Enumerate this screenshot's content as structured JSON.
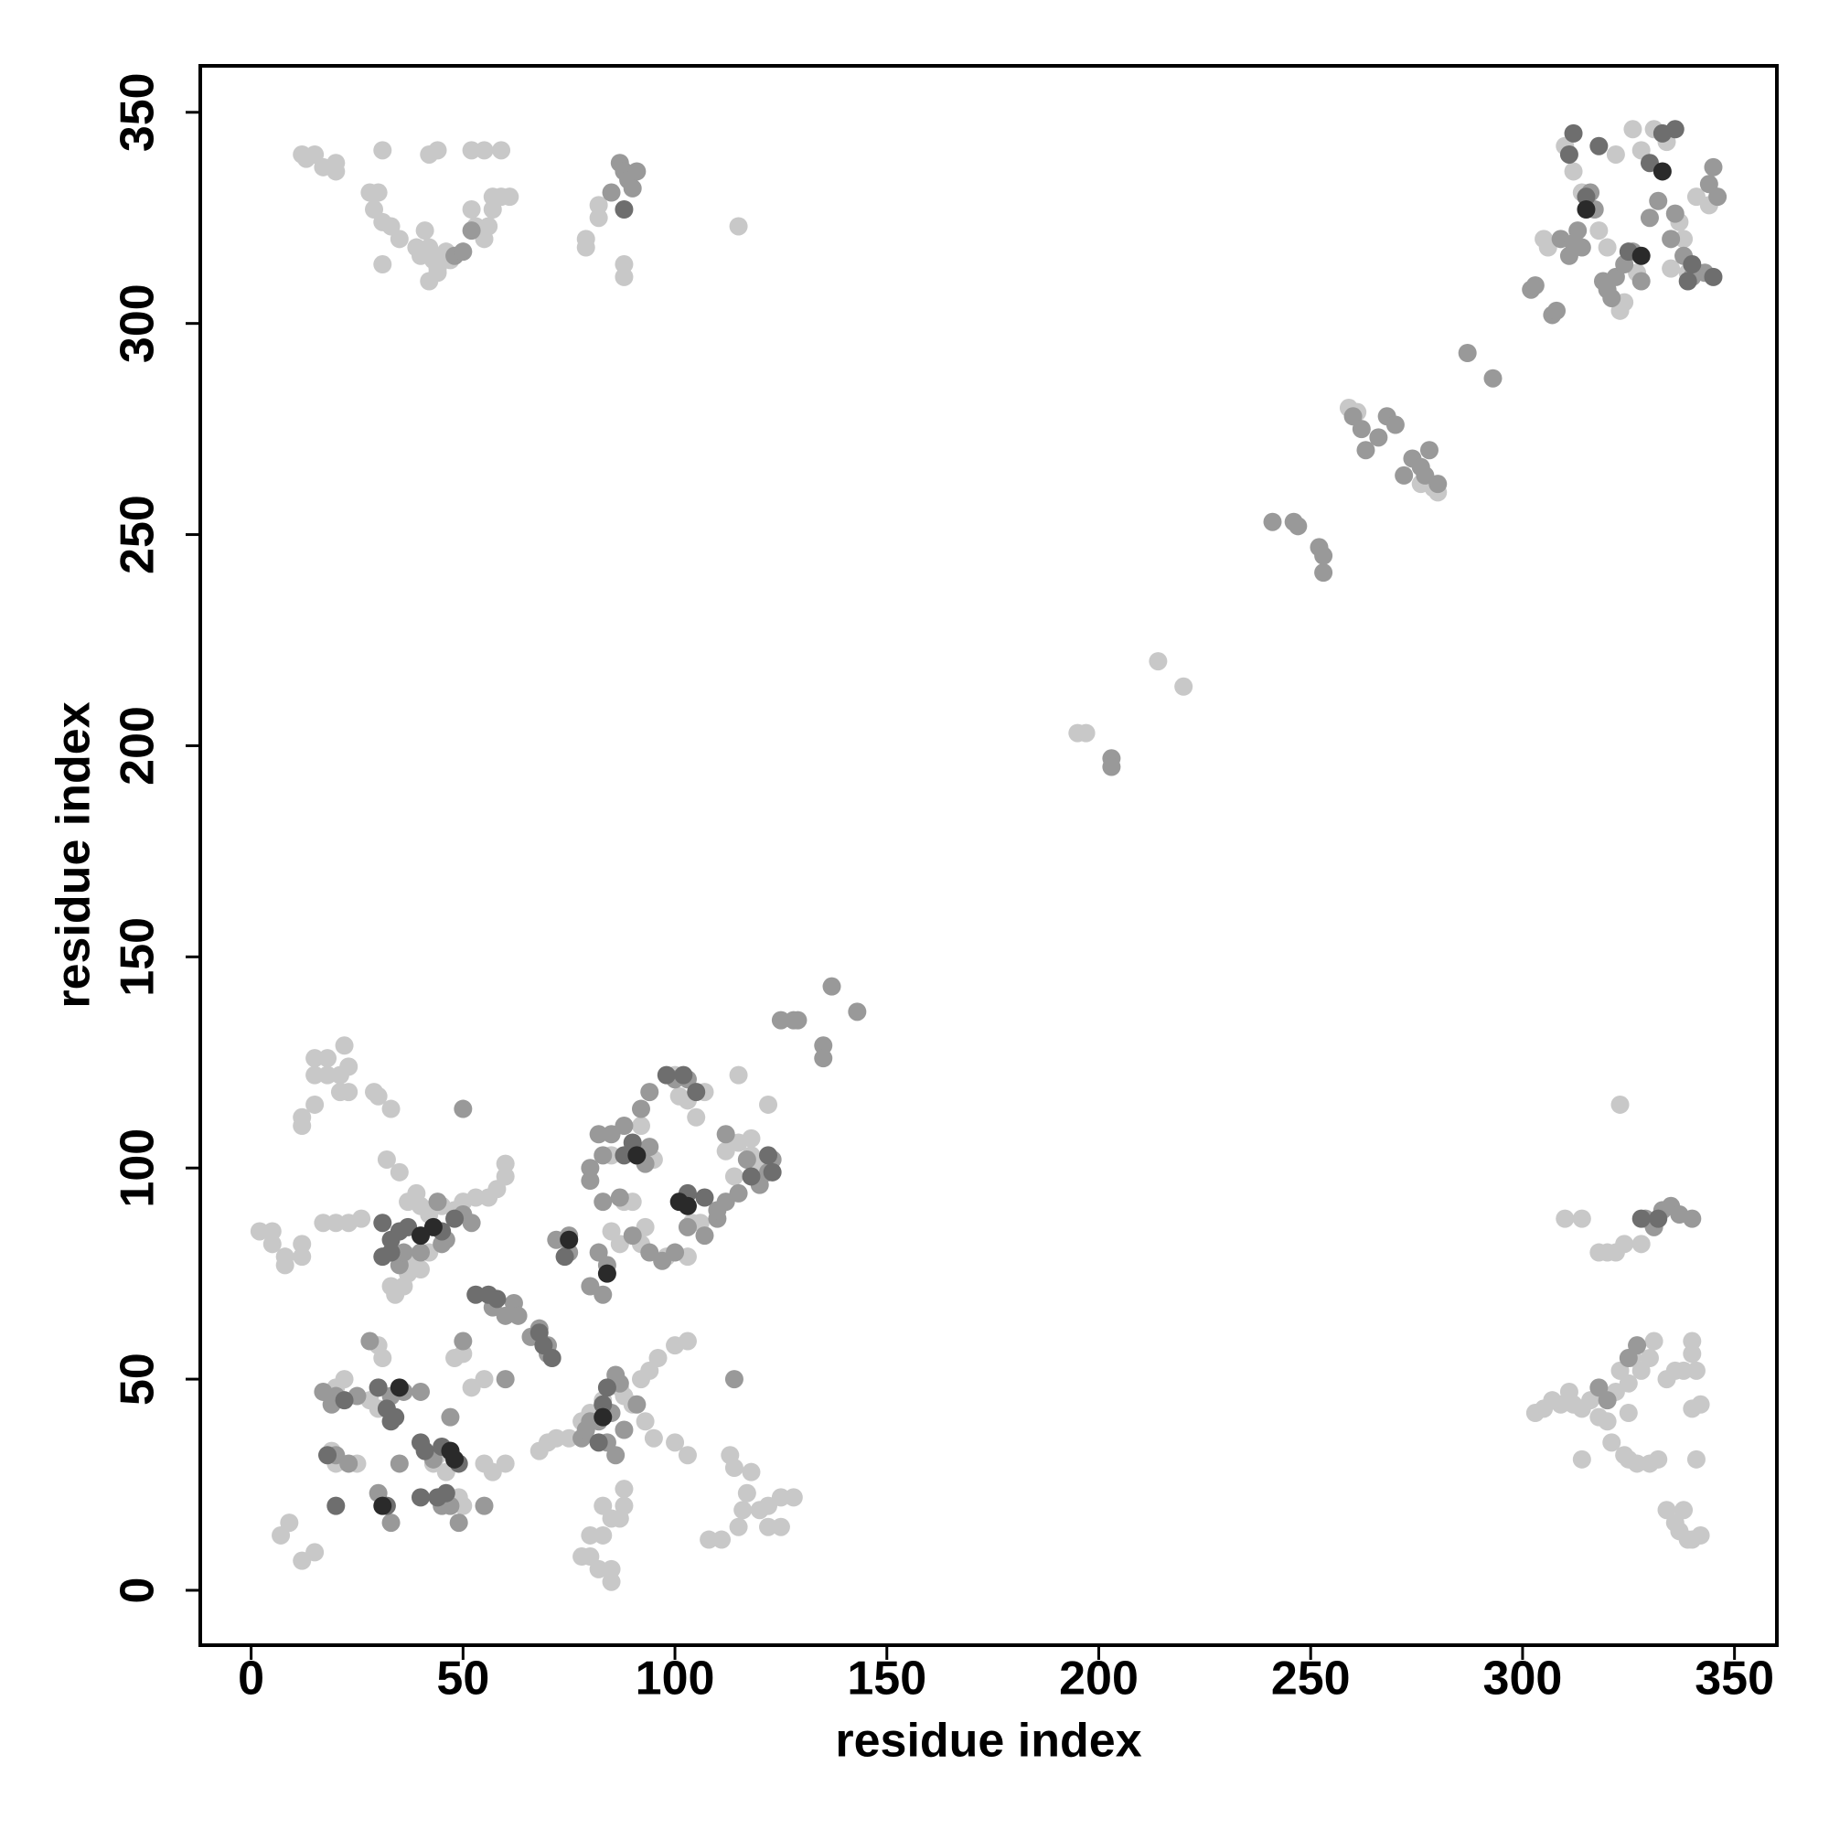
{
  "chart_data": {
    "type": "scatter",
    "xlabel": "residue index",
    "ylabel": "residue index",
    "xlim": [
      -12,
      360
    ],
    "ylim": [
      -13,
      361
    ],
    "xticks": [
      0,
      50,
      100,
      150,
      200,
      250,
      300,
      350
    ],
    "yticks": [
      0,
      50,
      100,
      150,
      200,
      250,
      300,
      350
    ],
    "series": [
      {
        "color": "#c8c8c8",
        "x": [
          12,
          13,
          15,
          17,
          20,
          20,
          31,
          42,
          44,
          52,
          55,
          59,
          28,
          30,
          29,
          31,
          33,
          35,
          31,
          39,
          40,
          41,
          42,
          43,
          44,
          45,
          46,
          47,
          42,
          44,
          52,
          53,
          56,
          57,
          57,
          59,
          61,
          55,
          79,
          79,
          82,
          82,
          88,
          88,
          115,
          305,
          306,
          310,
          312,
          314,
          318,
          320,
          322,
          326,
          328,
          331,
          334,
          338,
          341,
          344,
          324,
          323,
          327,
          335,
          339,
          337,
          259,
          261,
          279,
          280,
          276,
          195,
          197,
          214,
          220,
          2,
          5,
          5,
          8,
          8,
          12,
          12,
          12,
          12,
          15,
          15,
          15,
          18,
          18,
          21,
          21,
          22,
          23,
          23,
          29,
          30,
          33,
          32,
          35,
          17,
          20,
          23,
          26,
          37,
          39,
          40,
          42,
          45,
          48,
          50,
          53,
          56,
          60,
          60,
          58,
          33,
          34,
          36,
          37,
          38,
          40,
          42,
          30,
          31,
          28,
          30,
          20,
          22,
          50,
          48,
          55,
          52,
          55,
          57,
          60,
          49,
          50,
          46,
          43,
          44,
          20,
          25,
          19,
          12,
          15,
          7,
          9,
          68,
          70,
          72,
          75,
          78,
          80,
          83,
          87,
          88,
          90,
          92,
          94,
          96,
          100,
          103,
          100,
          103,
          93,
          95,
          78,
          80,
          80,
          83,
          82,
          85,
          85,
          87,
          88,
          88,
          85,
          83,
          108,
          111,
          115,
          116,
          117,
          120,
          122,
          122,
          125,
          125,
          128,
          113,
          114,
          118,
          115,
          118,
          115,
          118,
          120,
          112,
          122,
          114,
          100,
          101,
          103,
          105,
          107,
          90,
          88,
          85,
          87,
          92,
          93,
          104,
          106,
          103,
          98,
          85,
          92,
          95,
          310,
          314,
          318,
          320,
          322,
          324,
          328,
          323,
          303,
          305,
          307,
          309,
          311,
          312,
          314,
          316,
          318,
          320,
          321,
          322,
          323,
          325,
          325,
          326,
          328,
          330,
          331,
          334,
          336,
          338,
          340,
          340,
          341,
          340,
          342,
          324,
          325,
          327,
          330,
          332,
          334,
          336,
          337,
          339,
          340,
          342,
          338,
          341,
          314
        ],
        "values": [
          340,
          339,
          340,
          337,
          338,
          336,
          341,
          340,
          341,
          341,
          341,
          341,
          331,
          331,
          327,
          324,
          323,
          320,
          314,
          318,
          316,
          322,
          318,
          315,
          313,
          316,
          317,
          315,
          310,
          312,
          327,
          323,
          323,
          327,
          330,
          330,
          330,
          320,
          320,
          318,
          325,
          328,
          314,
          311,
          323,
          320,
          318,
          342,
          336,
          331,
          322,
          318,
          340,
          346,
          341,
          346,
          343,
          320,
          330,
          328,
          305,
          303,
          312,
          313,
          312,
          324,
          280,
          279,
          261,
          260,
          262,
          203,
          203,
          220,
          214,
          85,
          85,
          82,
          77,
          79,
          82,
          79,
          110,
          112,
          115,
          122,
          126,
          122,
          126,
          122,
          118,
          129,
          124,
          118,
          118,
          117,
          114,
          102,
          99,
          87,
          87,
          87,
          88,
          92,
          94,
          91,
          89,
          91,
          90,
          92,
          93,
          93,
          98,
          101,
          95,
          72,
          70,
          72,
          75,
          79,
          76,
          80,
          58,
          55,
          45,
          43,
          48,
          50,
          56,
          55,
          50,
          48,
          30,
          28,
          30,
          22,
          20,
          28,
          30,
          32,
          30,
          30,
          33,
          7,
          9,
          13,
          16,
          33,
          35,
          36,
          36,
          40,
          42,
          45,
          48,
          46,
          44,
          50,
          52,
          55,
          58,
          59,
          35,
          32,
          40,
          36,
          8,
          8,
          13,
          13,
          5,
          5,
          2,
          17,
          20,
          24,
          17,
          20,
          12,
          12,
          15,
          19,
          23,
          19,
          15,
          20,
          15,
          22,
          22,
          32,
          29,
          28,
          122,
          107,
          106,
          103,
          101,
          104,
          115,
          98,
          122,
          117,
          116,
          112,
          118,
          92,
          92,
          85,
          82,
          82,
          86,
          87,
          87,
          79,
          79,
          103,
          110,
          102,
          88,
          88,
          80,
          80,
          80,
          82,
          82,
          115,
          42,
          43,
          45,
          44,
          47,
          44,
          43,
          45,
          41,
          40,
          35,
          47,
          52,
          49,
          42,
          55,
          52,
          55,
          59,
          50,
          52,
          52,
          56,
          59,
          52,
          43,
          44,
          32,
          31,
          30,
          30,
          31,
          19,
          16,
          14,
          12,
          12,
          13,
          19,
          31,
          31
        ]
      },
      {
        "color": "#999999",
        "x": [
          48,
          50,
          52,
          85,
          87,
          88,
          89,
          91,
          90,
          302,
          303,
          307,
          308,
          309,
          311,
          312,
          313,
          314,
          316,
          317,
          319,
          320,
          321,
          322,
          324,
          326,
          328,
          330,
          332,
          335,
          336,
          338,
          340,
          343,
          344,
          345,
          346,
          260,
          262,
          263,
          266,
          268,
          270,
          272,
          274,
          276,
          278,
          277,
          280,
          287,
          293,
          241,
          246,
          247,
          252,
          253,
          253,
          203,
          203,
          125,
          128,
          135,
          135,
          137,
          143,
          129,
          20,
          23,
          17,
          20,
          19,
          25,
          30,
          33,
          36,
          28,
          30,
          33,
          35,
          47,
          45,
          49,
          43,
          50,
          44,
          50,
          52,
          45,
          46,
          35,
          36,
          40,
          57,
          60,
          62,
          63,
          66,
          68,
          70,
          70,
          72,
          75,
          75,
          80,
          80,
          83,
          82,
          85,
          88,
          92,
          94,
          87,
          83,
          90,
          94,
          97,
          100,
          103,
          107,
          110,
          112,
          115,
          117,
          120,
          122,
          110,
          80,
          83,
          84,
          78,
          79,
          82,
          85,
          84,
          86,
          88,
          87,
          86,
          91,
          80,
          114,
          60,
          50,
          47,
          82,
          94,
          91,
          93,
          103,
          100,
          123,
          112,
          55,
          40,
          318,
          320,
          325,
          327,
          329,
          331,
          333,
          335,
          337,
          340
        ],
        "values": [
          316,
          317,
          322,
          331,
          338,
          336,
          334,
          336,
          332,
          308,
          309,
          302,
          303,
          320,
          316,
          319,
          322,
          318,
          331,
          327,
          310,
          308,
          306,
          311,
          314,
          317,
          310,
          325,
          329,
          320,
          326,
          316,
          311,
          312,
          333,
          337,
          330,
          278,
          275,
          270,
          273,
          278,
          276,
          264,
          268,
          266,
          270,
          264,
          262,
          293,
          287,
          253,
          253,
          252,
          247,
          245,
          241,
          197,
          195,
          135,
          135,
          129,
          126,
          143,
          137,
          135,
          32,
          30,
          47,
          46,
          44,
          46,
          48,
          46,
          47,
          59,
          23,
          16,
          30,
          20,
          20,
          16,
          31,
          114,
          92,
          89,
          87,
          82,
          83,
          77,
          80,
          80,
          67,
          65,
          68,
          65,
          60,
          62,
          56,
          58,
          83,
          80,
          84,
          97,
          100,
          103,
          108,
          108,
          110,
          114,
          118,
          93,
          92,
          84,
          80,
          78,
          80,
          86,
          84,
          88,
          92,
          94,
          102,
          96,
          99,
          90,
          72,
          70,
          77,
          36,
          38,
          40,
          42,
          35,
          32,
          38,
          49,
          51,
          44,
          40,
          50,
          50,
          59,
          41,
          80,
          105,
          103,
          101,
          121,
          121,
          102,
          108,
          20,
          47,
          48,
          45,
          55,
          58,
          88,
          86,
          90,
          91,
          89,
          88
        ]
      },
      {
        "color": "#6e6e6e",
        "x": [
          312,
          311,
          315,
          318,
          325,
          330,
          333,
          336,
          339,
          345,
          340,
          88,
          31,
          33,
          35,
          33,
          31,
          37,
          45,
          48,
          40,
          30,
          32,
          34,
          33,
          40,
          41,
          45,
          47,
          49,
          53,
          56,
          58,
          68,
          69,
          71,
          74,
          88,
          90,
          98,
          102,
          105,
          103,
          107,
          122,
          123,
          118,
          20,
          32,
          18,
          22,
          46,
          44,
          82,
          84,
          83,
          328,
          332
        ],
        "values": [
          345,
          340,
          330,
          342,
          317,
          338,
          345,
          346,
          310,
          311,
          314,
          327,
          87,
          83,
          85,
          80,
          79,
          86,
          85,
          88,
          22,
          48,
          43,
          41,
          40,
          35,
          33,
          34,
          33,
          30,
          70,
          70,
          69,
          61,
          58,
          55,
          79,
          103,
          106,
          122,
          122,
          118,
          94,
          93,
          103,
          99,
          98,
          20,
          20,
          32,
          45,
          23,
          22,
          35,
          48,
          44,
          88,
          88
        ]
      },
      {
        "color": "#2a2a2a",
        "x": [
          315,
          328,
          333,
          47,
          48,
          31,
          35,
          40,
          43,
          75,
          84,
          83,
          91,
          101,
          103
        ],
        "values": [
          327,
          316,
          336,
          33,
          31,
          20,
          48,
          84,
          86,
          83,
          75,
          41,
          103,
          92,
          91
        ]
      }
    ]
  }
}
